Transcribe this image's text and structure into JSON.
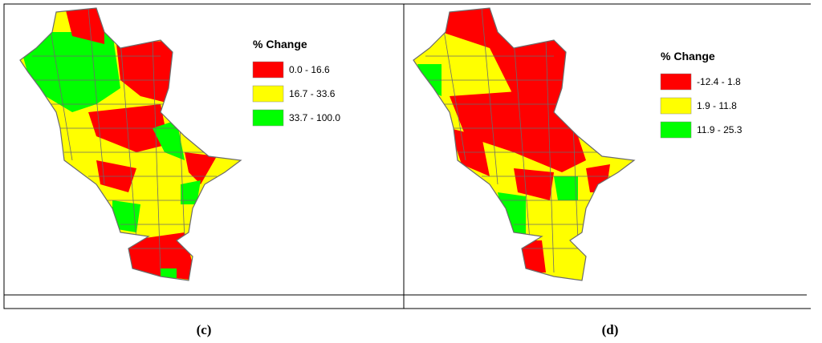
{
  "panels": [
    {
      "caption": "(c)",
      "legend": {
        "title": "% Change",
        "items": [
          {
            "label": "0.0 - 16.6",
            "color": "#ff0000"
          },
          {
            "label": "16.7 - 33.6",
            "color": "#ffff00"
          },
          {
            "label": "33.7 - 100.0",
            "color": "#00ff00"
          }
        ]
      }
    },
    {
      "caption": "(d)",
      "legend": {
        "title": "% Change",
        "items": [
          {
            "label": "-12.4 - 1.8",
            "color": "#ff0000"
          },
          {
            "label": "1.9 - 11.8",
            "color": "#ffff00"
          },
          {
            "label": "11.9 - 25.3",
            "color": "#00ff00"
          }
        ]
      }
    }
  ]
}
